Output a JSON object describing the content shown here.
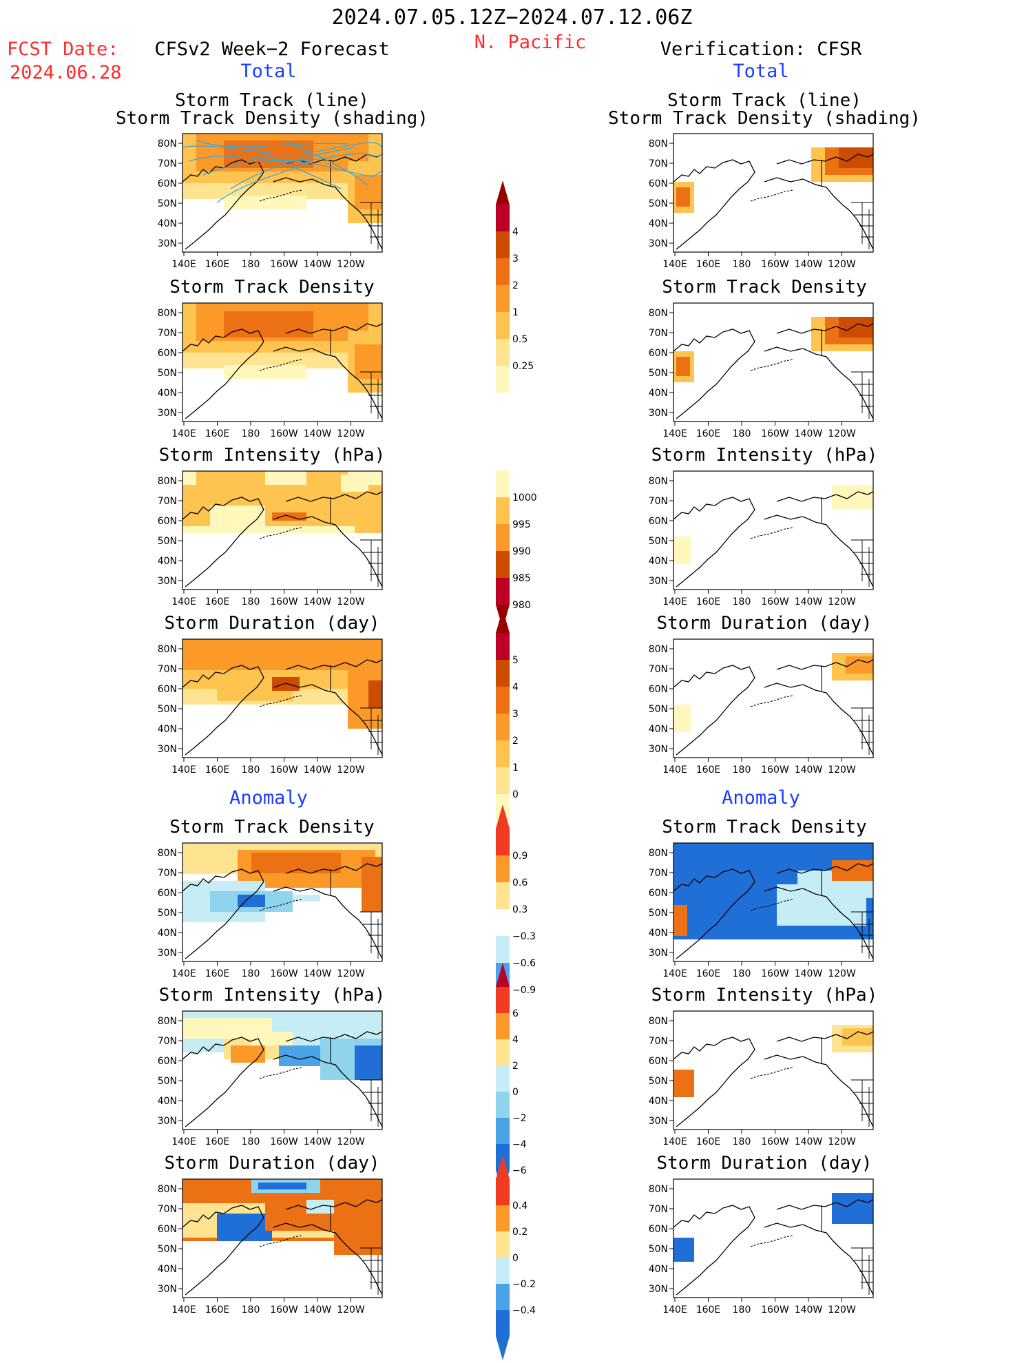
{
  "header": {
    "date_range": "2024.07.05.12Z−2024.07.12.06Z",
    "region": "N. Pacific",
    "fcst_label": "FCST Date:",
    "fcst_date": "2024.06.28",
    "left_title": "CFSv2 Week−2 Forecast",
    "right_title": "Verification: CFSR",
    "total_label": "Total",
    "anomaly_label": "Anomaly"
  },
  "axes": {
    "lat_ticks": [
      "80N",
      "70N",
      "60N",
      "50N",
      "40N",
      "30N"
    ],
    "lon_ticks": [
      "140E",
      "160E",
      "180",
      "160W",
      "140W",
      "120W"
    ]
  },
  "panel_titles": {
    "track_line_1": "Storm Track (line)",
    "track_line_2": "Storm Track Density (shading)",
    "density": "Storm Track Density",
    "intensity": "Storm Intensity (hPa)",
    "duration": "Storm Duration (day)"
  },
  "colorbars": {
    "density_total": [
      "4",
      "3",
      "2",
      "1",
      "0.5",
      "0.25"
    ],
    "intensity_total": [
      "1000",
      "995",
      "990",
      "985",
      "980"
    ],
    "duration_total": [
      "5",
      "4",
      "3",
      "2",
      "1",
      "0"
    ],
    "density_anom": [
      "0.9",
      "0.6",
      "0.3",
      "−0.3",
      "−0.6",
      "−0.9"
    ],
    "intensity_anom": [
      "6",
      "4",
      "2",
      "0",
      "−2",
      "−4",
      "−6"
    ],
    "duration_anom": [
      "0.4",
      "0.2",
      "0",
      "−0.2",
      "−0.4"
    ]
  },
  "colors": {
    "warm": [
      "#fff7bc",
      "#fee391",
      "#fec44f",
      "#fb9a29",
      "#ec7014",
      "#cc4c02",
      "#990000"
    ],
    "cool": [
      "#c6ecf5",
      "#8fd3ec",
      "#4aa3e6",
      "#1f6fd6",
      "#0b4fb0"
    ],
    "track_line": "#39a8d8",
    "title_red": "#ff2a2a",
    "title_blue": "#1a3cff"
  }
}
